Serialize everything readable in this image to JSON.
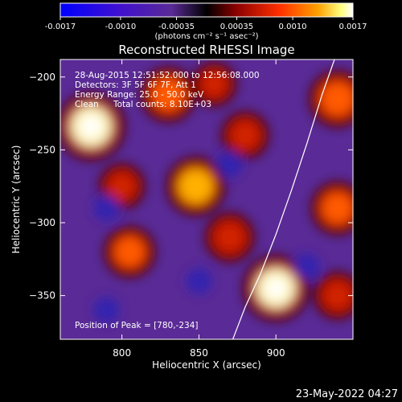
{
  "colorbar": {
    "ticks": [
      "-0.0017",
      "-0.0010",
      "-0.00035",
      "0.00035",
      "0.0010",
      "0.0017"
    ],
    "unit_label": "(photons cm⁻² s⁻¹ asec⁻²)",
    "vmin": -0.0017,
    "vmax": 0.0017
  },
  "annotations": {
    "time_range": "28-Aug-2015 12:51:52.000 to 12:56:08.000",
    "detectors": "Detectors: 3F 5F 6F 7F, Att 1",
    "energy": "Energy Range: 25.0 - 50.0 keV",
    "algorithm": "Clean",
    "counts": "Total counts: 8.10E+03",
    "peak": "Position of Peak = [780,-234]"
  },
  "timestamp": "23-May-2022 04:27",
  "chart_data": {
    "type": "heatmap",
    "title": "Reconstructed RHESSI Image",
    "xlabel": "Heliocentric X (arcsec)",
    "ylabel": "Heliocentric Y (arcsec)",
    "xlim": [
      760,
      950
    ],
    "ylim": [
      -380,
      -188
    ],
    "xticks": [
      800,
      850,
      900
    ],
    "yticks": [
      -200,
      -250,
      -300,
      -350
    ],
    "colormap": "blue-purple-red-yellow-white",
    "peak_position": [
      780,
      -234
    ],
    "limb_curve": {
      "x": [
        872,
        880,
        890,
        900,
        910,
        920,
        930,
        938
      ],
      "y": [
        -380,
        -358,
        -335,
        -308,
        -278,
        -246,
        -212,
        -188
      ]
    },
    "sources": [
      {
        "x": 780,
        "y": -234,
        "intensity": 1.0
      },
      {
        "x": 900,
        "y": -345,
        "intensity": 0.95
      },
      {
        "x": 848,
        "y": -275,
        "intensity": 0.75
      },
      {
        "x": 830,
        "y": -212,
        "intensity": 0.65
      },
      {
        "x": 940,
        "y": -215,
        "intensity": 0.7
      },
      {
        "x": 940,
        "y": -290,
        "intensity": 0.6
      },
      {
        "x": 805,
        "y": -320,
        "intensity": 0.55
      },
      {
        "x": 870,
        "y": -310,
        "intensity": 0.5
      },
      {
        "x": 880,
        "y": -240,
        "intensity": 0.45
      },
      {
        "x": 940,
        "y": -350,
        "intensity": 0.45
      },
      {
        "x": 800,
        "y": -275,
        "intensity": 0.4
      },
      {
        "x": 860,
        "y": -205,
        "intensity": 0.35
      }
    ]
  }
}
